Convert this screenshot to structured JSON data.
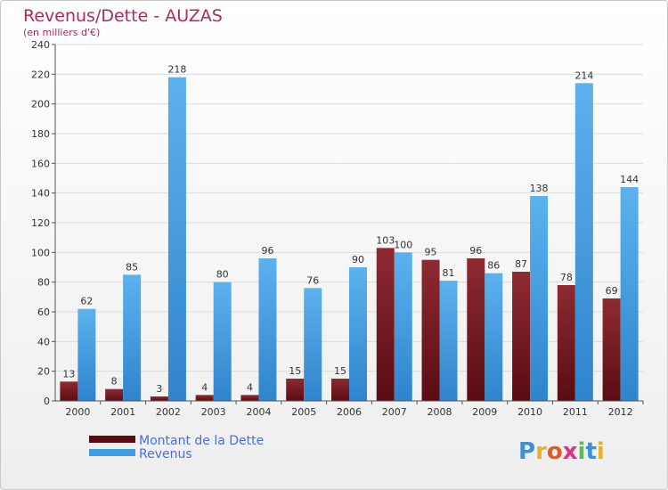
{
  "chart_data": {
    "type": "bar",
    "title": "Revenus/Dette - AUZAS",
    "subtitle": "(en milliers d'€)",
    "xlabel": "",
    "ylabel": "",
    "ylim": [
      0,
      240
    ],
    "yticks": [
      0,
      20,
      40,
      60,
      80,
      100,
      120,
      140,
      160,
      180,
      200,
      220,
      240
    ],
    "grid": true,
    "categories": [
      "2000",
      "2001",
      "2002",
      "2003",
      "2004",
      "2005",
      "2006",
      "2007",
      "2008",
      "2009",
      "2010",
      "2011",
      "2012"
    ],
    "series": [
      {
        "name": "Montant de la Dette",
        "color": "#7a1a22",
        "values": [
          13,
          8,
          3,
          4,
          4,
          15,
          15,
          103,
          95,
          96,
          87,
          78,
          69
        ]
      },
      {
        "name": "Revenus",
        "color": "#3f9ee3",
        "values": [
          62,
          85,
          218,
          80,
          96,
          76,
          90,
          100,
          81,
          86,
          138,
          214,
          144
        ]
      }
    ],
    "legend_position": "bottom-left"
  },
  "logo": {
    "letters": [
      "P",
      "r",
      "o",
      "x",
      "i",
      "t",
      "i"
    ],
    "colors": [
      "#3d8fd6",
      "#e8b126",
      "#e05a2a",
      "#d6338a",
      "#5cb85c",
      "#3d8fd6",
      "#e8b126"
    ]
  }
}
